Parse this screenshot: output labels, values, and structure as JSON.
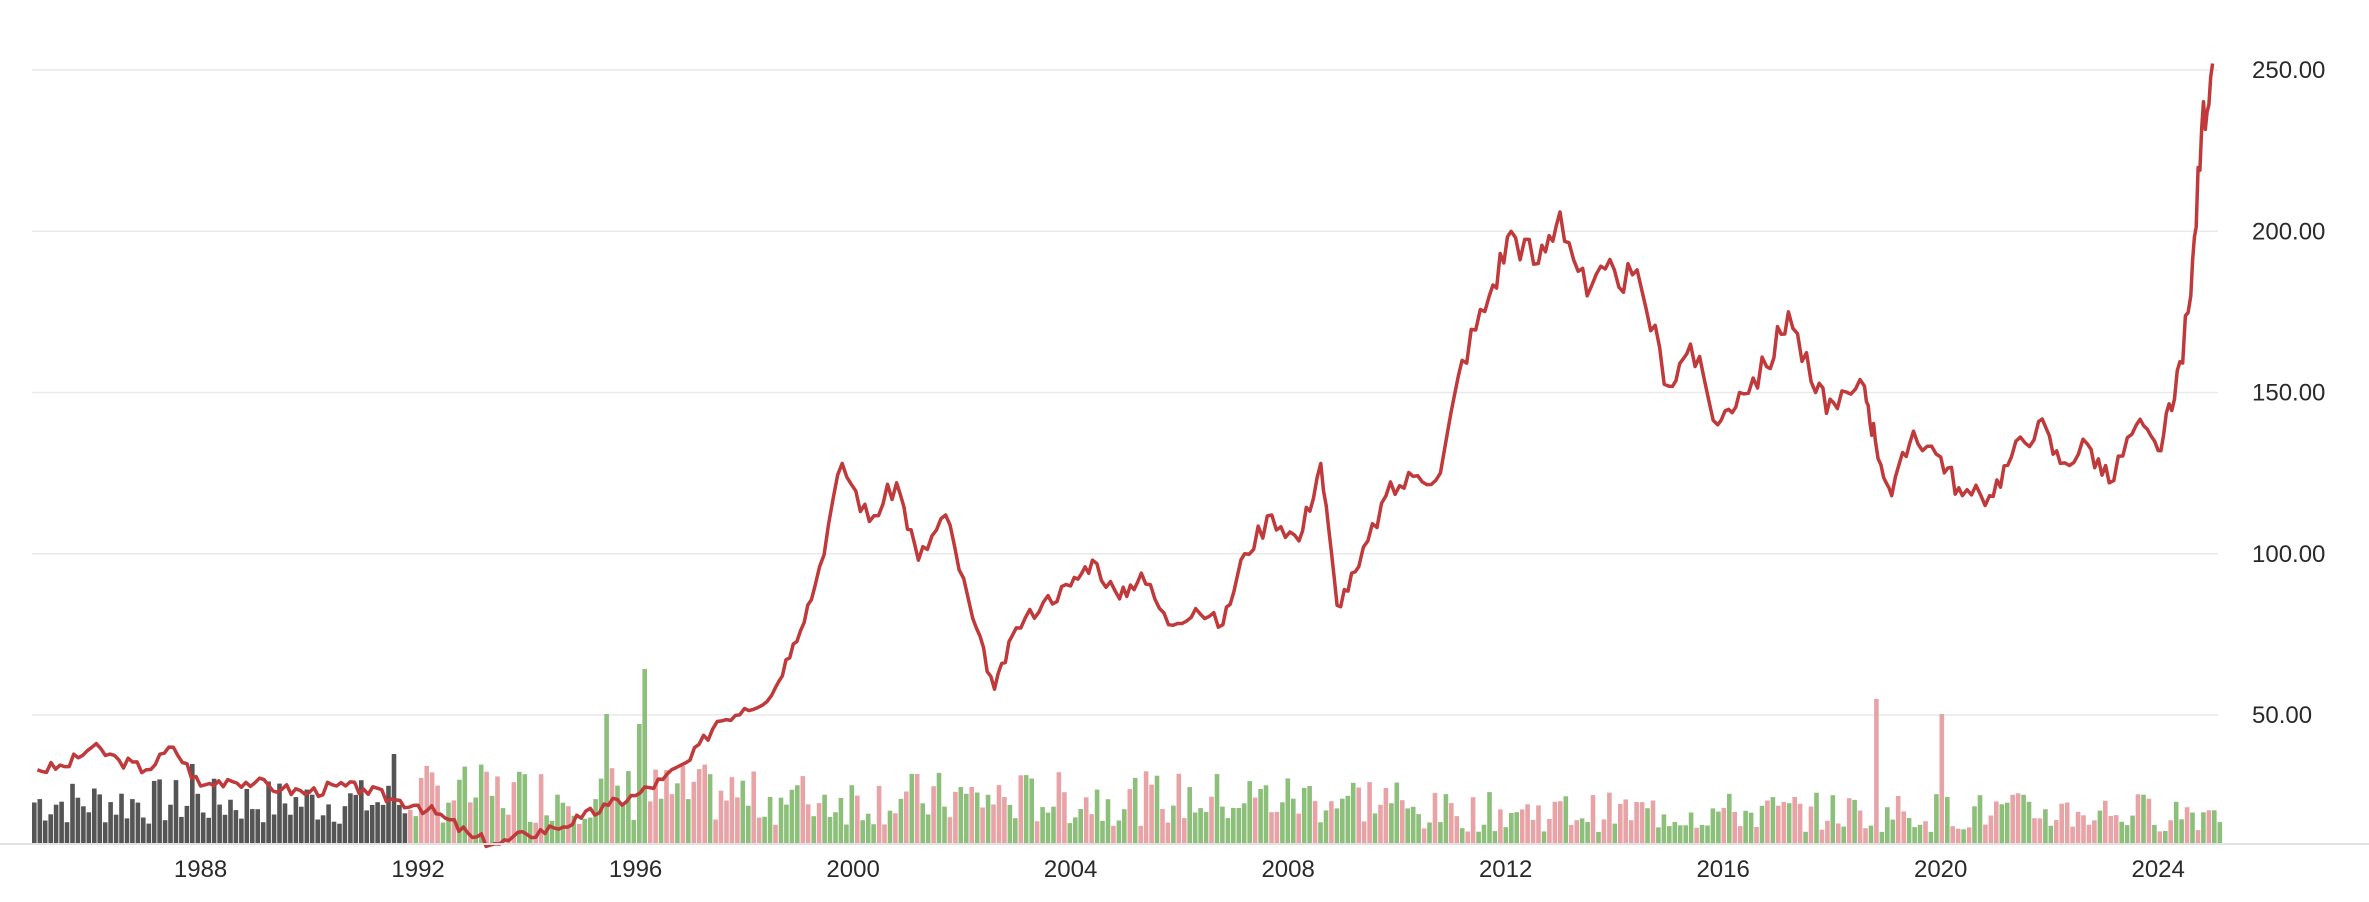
{
  "chart_data": {
    "type": "line",
    "title": "",
    "xlabel": "",
    "ylabel": "",
    "ylim": [
      0,
      260
    ],
    "xlim": [
      1984.9,
      2025.1
    ],
    "grid": true,
    "legend": "none",
    "colors": {
      "line": "#c0393b",
      "volume_early": "#555555",
      "volume_up": "#8cbf7a",
      "volume_down": "#e8a3a6",
      "grid": "#e9e9e9",
      "text": "#2a2a2a"
    },
    "y_ticks": [
      "50.00",
      "100.00",
      "150.00",
      "200.00",
      "250.00"
    ],
    "y_tick_values": [
      50,
      100,
      150,
      200,
      250
    ],
    "x_ticks": [
      "1988",
      "1992",
      "1996",
      "2000",
      "2004",
      "2008",
      "2012",
      "2016",
      "2020",
      "2024"
    ],
    "x_tick_values": [
      1988,
      1992,
      1996,
      2000,
      2004,
      2008,
      2012,
      2016,
      2020,
      2024
    ],
    "series": [
      {
        "x": [
          1985.0,
          1985.5,
          1986.0,
          1986.5,
          1987.0,
          1987.5,
          1988.0,
          1988.5,
          1989.0,
          1989.5,
          1990.0,
          1990.5,
          1991.0,
          1991.5,
          1992.0,
          1992.5,
          1993.0,
          1993.5,
          1994.0,
          1994.5,
          1995.0,
          1995.5,
          1996.0,
          1996.5,
          1997.0,
          1997.5,
          1998.0,
          1998.5,
          1998.9,
          1999.3,
          1999.8,
          2000.3,
          2000.8,
          2001.2,
          2001.7,
          2002.2,
          2002.6,
          2003.0,
          2003.5,
          2004.0,
          2004.4,
          2004.9,
          2005.3,
          2005.8,
          2006.3,
          2006.8,
          2007.2,
          2007.7,
          2008.2,
          2008.6,
          2008.9,
          2009.3,
          2009.8,
          2010.3,
          2010.8,
          2011.2,
          2011.7,
          2012.1,
          2012.6,
          2013.0,
          2013.5,
          2014.0,
          2014.5,
          2015.0,
          2015.4,
          2015.9,
          2016.3,
          2016.8,
          2017.2,
          2017.7,
          2018.1,
          2018.6,
          2018.8,
          2019.1,
          2019.5,
          2020.0,
          2020.4,
          2020.9,
          2021.3,
          2021.8,
          2022.2,
          2022.7,
          2023.1,
          2023.6,
          2024.0,
          2024.3,
          2024.6,
          2024.8,
          2025.0
        ],
        "values": [
          33,
          34,
          40,
          36,
          33,
          40,
          28,
          30,
          29,
          27,
          26,
          28,
          27,
          24,
          22,
          18,
          12,
          10,
          13,
          15,
          18,
          22,
          25,
          30,
          36,
          48,
          52,
          56,
          72,
          90,
          128,
          110,
          122,
          98,
          112,
          80,
          58,
          77,
          85,
          90,
          98,
          86,
          94,
          78,
          83,
          78,
          100,
          112,
          104,
          128,
          84,
          96,
          118,
          124,
          125,
          160,
          180,
          200,
          190,
          206,
          180,
          188,
          182,
          152,
          165,
          140,
          150,
          158,
          175,
          150,
          145,
          152,
          135,
          118,
          138,
          130,
          118,
          118,
          130,
          141,
          128,
          134,
          122,
          140,
          132,
          148,
          180,
          232,
          252
        ]
      }
    ]
  }
}
